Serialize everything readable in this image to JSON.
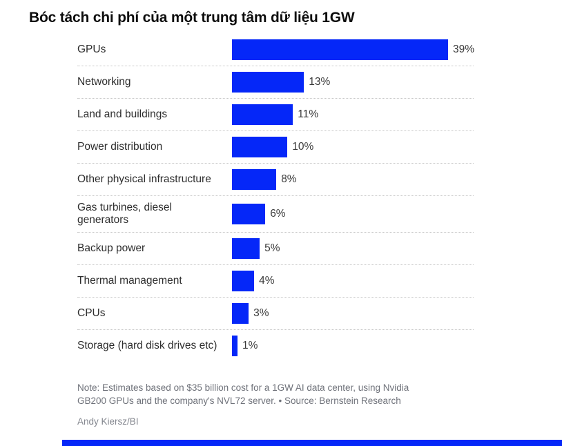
{
  "title": "Bóc tách chi phí của một trung tâm dữ liệu 1GW",
  "chart_data": {
    "type": "bar",
    "orientation": "horizontal",
    "title": "Bóc tách chi phí của một trung tâm dữ liệu 1GW",
    "categories": [
      "GPUs",
      "Networking",
      "Land and buildings",
      "Power distribution",
      "Other physical infrastructure",
      "Gas turbines, diesel generators",
      "Backup power",
      "Thermal management",
      "CPUs",
      "Storage (hard disk drives etc)"
    ],
    "values": [
      39,
      13,
      11,
      10,
      8,
      6,
      5,
      4,
      3,
      1
    ],
    "value_labels": [
      "39%",
      "13%",
      "11%",
      "10%",
      "8%",
      "6%",
      "5%",
      "4%",
      "3%",
      "1%"
    ],
    "xlabel": "",
    "ylabel": "",
    "xlim": [
      0,
      39
    ],
    "grid": false,
    "legend": "none",
    "bar_color": "#0527f8",
    "separator_style": "dotted"
  },
  "note": {
    "lines": [
      "Note: Estimates based on $35 billion cost for a 1GW AI data center, using Nvidia",
      "GB200 GPUs and the company's NVL72 server. • Source: Bernstein Research"
    ]
  },
  "credit": "Andy Kiersz/BI",
  "colors": {
    "bar": "#0527f8",
    "footer_bar": "#0527f8",
    "label_text": "#2d2d2d",
    "note_text": "#6f727a"
  }
}
